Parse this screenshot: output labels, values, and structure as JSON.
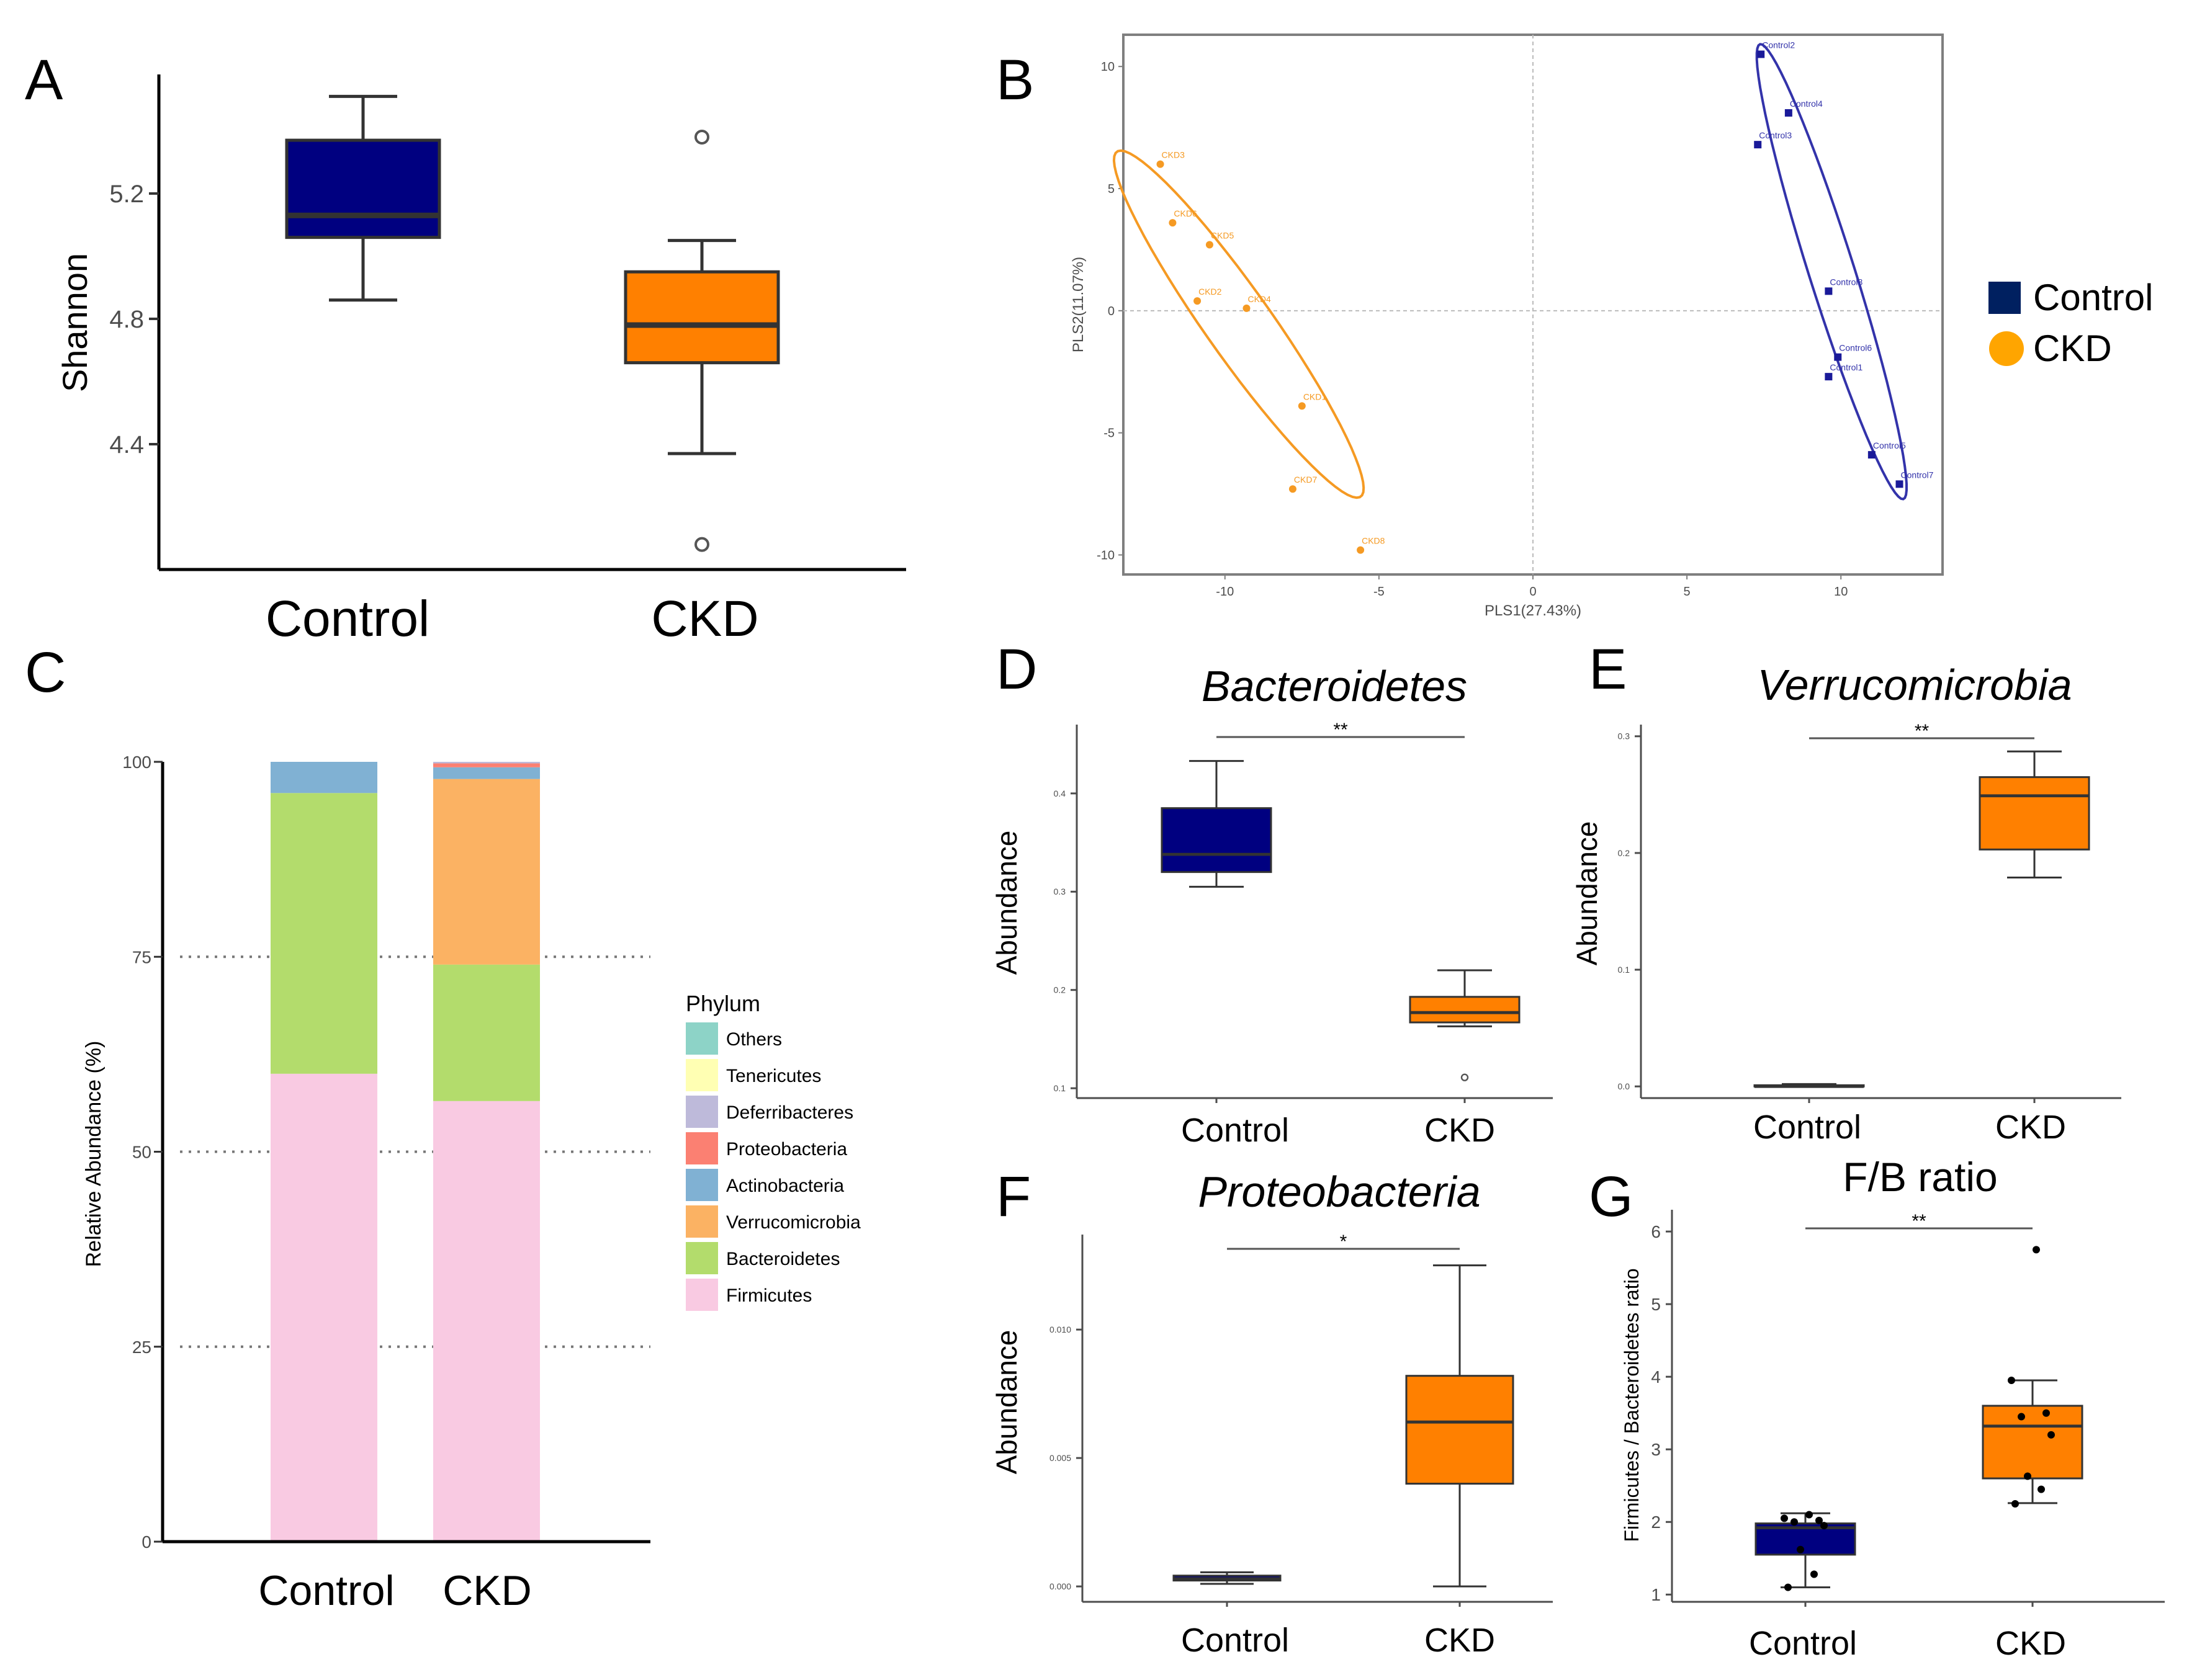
{
  "colors": {
    "control": "#000080",
    "ckd": "#ff8000",
    "control_legend": "#002060",
    "ckd_legend": "#ffa500",
    "pca_control": "#3333aa",
    "pca_ckd": "#f59a23"
  },
  "chart_data": [
    {
      "panel": "A",
      "type": "box",
      "title": "",
      "xlabel": "",
      "ylabel": "Shannon",
      "categories": [
        "Control",
        "CKD"
      ],
      "yticks": [
        "4.4",
        "4.8",
        "5.2"
      ],
      "ytick_values": [
        4.4,
        4.8,
        5.2
      ],
      "ylim": [
        4.0,
        5.58
      ],
      "boxes": [
        {
          "name": "Control",
          "whisker_low": 4.86,
          "q1": 5.06,
          "median": 5.13,
          "q3": 5.37,
          "whisker_high": 5.51,
          "outliers": []
        },
        {
          "name": "CKD",
          "whisker_low": 4.37,
          "q1": 4.66,
          "median": 4.78,
          "q3": 4.95,
          "whisker_high": 5.05,
          "outliers": [
            5.38,
            4.08
          ]
        }
      ]
    },
    {
      "panel": "B",
      "type": "scatter",
      "title": "",
      "xlabel": "PLS1(27.43%)",
      "ylabel": "PLS2(11.07%)",
      "xlim": [
        -13.3,
        13.3
      ],
      "ylim": [
        -10.8,
        11.3
      ],
      "xticks": [
        "-10",
        "-5",
        "0",
        "5",
        "10"
      ],
      "xtick_values": [
        -10,
        -5,
        0,
        5,
        10
      ],
      "yticks": [
        "-10",
        "-5",
        "0",
        "5",
        "10"
      ],
      "ytick_values": [
        -10,
        -5,
        0,
        5,
        10
      ],
      "legend": [
        {
          "label": "Control",
          "shape": "square"
        },
        {
          "label": "CKD",
          "shape": "circle"
        }
      ],
      "series": [
        {
          "name": "CKD",
          "points": [
            {
              "label": "CKD3",
              "x": -12.1,
              "y": 6.0
            },
            {
              "label": "CKD6",
              "x": -11.7,
              "y": 3.6
            },
            {
              "label": "CKD5",
              "x": -10.5,
              "y": 2.7
            },
            {
              "label": "CKD2",
              "x": -10.9,
              "y": 0.4
            },
            {
              "label": "CKD4",
              "x": -9.3,
              "y": 0.1
            },
            {
              "label": "CKD1",
              "x": -7.5,
              "y": -3.9
            },
            {
              "label": "CKD7",
              "x": -7.8,
              "y": -7.3
            },
            {
              "label": "CKD8",
              "x": -5.6,
              "y": -9.8
            }
          ],
          "ellipse": {
            "cx": -9.55,
            "cy": -0.55,
            "rx": 8.1,
            "ry": 1.15,
            "angle_deg": -61
          }
        },
        {
          "name": "Control",
          "points": [
            {
              "label": "Control2",
              "x": 7.4,
              "y": 10.5
            },
            {
              "label": "Control4",
              "x": 8.3,
              "y": 8.1
            },
            {
              "label": "Control3",
              "x": 7.3,
              "y": 6.8
            },
            {
              "label": "Control8",
              "x": 9.6,
              "y": 0.8
            },
            {
              "label": "Control6",
              "x": 9.9,
              "y": -1.9
            },
            {
              "label": "Control1",
              "x": 9.6,
              "y": -2.7
            },
            {
              "label": "Control5",
              "x": 11.0,
              "y": -5.9
            },
            {
              "label": "Control7",
              "x": 11.9,
              "y": -7.1
            }
          ],
          "ellipse": {
            "cx": 9.7,
            "cy": 1.6,
            "rx": 9.6,
            "ry": 0.75,
            "angle_deg": -76
          }
        }
      ]
    },
    {
      "panel": "C",
      "type": "bar",
      "stacked": true,
      "title": "",
      "xlabel": "",
      "ylabel": "Relative Abundance (%)",
      "categories": [
        "Control",
        "CKD"
      ],
      "ylim": [
        0,
        100
      ],
      "yticks": [
        "0",
        "25",
        "50",
        "75",
        "100"
      ],
      "ytick_values": [
        0,
        25,
        50,
        75,
        100
      ],
      "legend_title": "Phylum",
      "legend_order": [
        "Others",
        "Tenericutes",
        "Deferribacteres",
        "Proteobacteria",
        "Actinobacteria",
        "Verrucomicrobia",
        "Bacteroidetes",
        "Firmicutes"
      ],
      "series": [
        {
          "name": "Firmicutes",
          "color": "#f9cae2",
          "values": [
            60.0,
            56.5
          ]
        },
        {
          "name": "Bacteroidetes",
          "color": "#b3dc6c",
          "values": [
            36.0,
            17.5
          ]
        },
        {
          "name": "Verrucomicrobia",
          "color": "#fbb263",
          "values": [
            0.0,
            23.8
          ]
        },
        {
          "name": "Actinobacteria",
          "color": "#80b1d3",
          "values": [
            4.0,
            1.5
          ]
        },
        {
          "name": "Proteobacteria",
          "color": "#fb8072",
          "values": [
            0.0,
            0.5
          ]
        },
        {
          "name": "Deferribacteres",
          "color": "#bebada",
          "values": [
            0.0,
            0.2
          ]
        },
        {
          "name": "Tenericutes",
          "color": "#ffffb3",
          "values": [
            0.0,
            0.0
          ]
        },
        {
          "name": "Others",
          "color": "#8dd3c7",
          "values": [
            0.0,
            0.0
          ]
        }
      ]
    },
    {
      "panel": "D",
      "type": "box",
      "title": "Bacteroidetes",
      "ylabel": "Abundance",
      "categories": [
        "Control",
        "CKD"
      ],
      "yticks": [
        "0.1",
        "0.2",
        "0.3",
        "0.4"
      ],
      "ytick_values": [
        0.1,
        0.2,
        0.3,
        0.4
      ],
      "ylim": [
        0.09,
        0.47
      ],
      "significance": "**",
      "boxes": [
        {
          "name": "Control",
          "whisker_low": 0.305,
          "q1": 0.32,
          "median": 0.338,
          "q3": 0.385,
          "whisker_high": 0.433,
          "outliers": []
        },
        {
          "name": "CKD",
          "whisker_low": 0.163,
          "q1": 0.167,
          "median": 0.177,
          "q3": 0.193,
          "whisker_high": 0.22,
          "outliers": [
            0.111
          ]
        }
      ]
    },
    {
      "panel": "E",
      "type": "box",
      "title": "Verrucomicrobia",
      "ylabel": "Abundance",
      "categories": [
        "Control",
        "CKD"
      ],
      "yticks": [
        "0.0",
        "0.1",
        "0.2",
        "0.3"
      ],
      "ytick_values": [
        0.0,
        0.1,
        0.2,
        0.3
      ],
      "ylim": [
        -0.01,
        0.31
      ],
      "significance": "**",
      "boxes": [
        {
          "name": "Control",
          "whisker_low": 0.0,
          "q1": 0.0,
          "median": 0.0,
          "q3": 0.001,
          "whisker_high": 0.002,
          "outliers": []
        },
        {
          "name": "CKD",
          "whisker_low": 0.179,
          "q1": 0.203,
          "median": 0.249,
          "q3": 0.265,
          "whisker_high": 0.287,
          "outliers": []
        }
      ]
    },
    {
      "panel": "F",
      "type": "box",
      "title": "Proteobacteria",
      "ylabel": "Abundance",
      "categories": [
        "Control",
        "CKD"
      ],
      "yticks": [
        "0.000",
        "0.005",
        "0.010"
      ],
      "ytick_values": [
        0.0,
        0.005,
        0.01
      ],
      "ylim": [
        -0.0006,
        0.0137
      ],
      "significance": "*",
      "boxes": [
        {
          "name": "Control",
          "whisker_low": 0.0001,
          "q1": 0.00023,
          "median": 0.0003,
          "q3": 0.00042,
          "whisker_high": 0.00055,
          "outliers": []
        },
        {
          "name": "CKD",
          "whisker_low": 0.0,
          "q1": 0.004,
          "median": 0.0064,
          "q3": 0.0082,
          "whisker_high": 0.0125,
          "outliers": []
        }
      ]
    },
    {
      "panel": "G",
      "type": "box",
      "title": "F/B ratio",
      "ylabel": "Firmicutes / Bacteroidetes ratio",
      "categories": [
        "Control",
        "CKD"
      ],
      "yticks": [
        "1",
        "2",
        "3",
        "4",
        "5",
        "6"
      ],
      "ytick_values": [
        1,
        2,
        3,
        4,
        5,
        6
      ],
      "ylim": [
        0.9,
        6.3
      ],
      "significance": "**",
      "boxes": [
        {
          "name": "Control",
          "whisker_low": 1.1,
          "q1": 1.55,
          "median": 1.92,
          "q3": 1.98,
          "whisker_high": 2.12,
          "outliers": []
        },
        {
          "name": "CKD",
          "whisker_low": 2.26,
          "q1": 2.6,
          "median": 3.32,
          "q3": 3.6,
          "whisker_high": 3.95,
          "outliers": []
        }
      ],
      "points": [
        {
          "group": "Control",
          "values": [
            1.1,
            1.28,
            1.62,
            1.95,
            2.0,
            2.02,
            2.05,
            2.1
          ]
        },
        {
          "group": "CKD",
          "values": [
            2.25,
            2.45,
            2.63,
            3.2,
            3.45,
            3.5,
            3.95,
            5.75
          ]
        }
      ]
    }
  ]
}
